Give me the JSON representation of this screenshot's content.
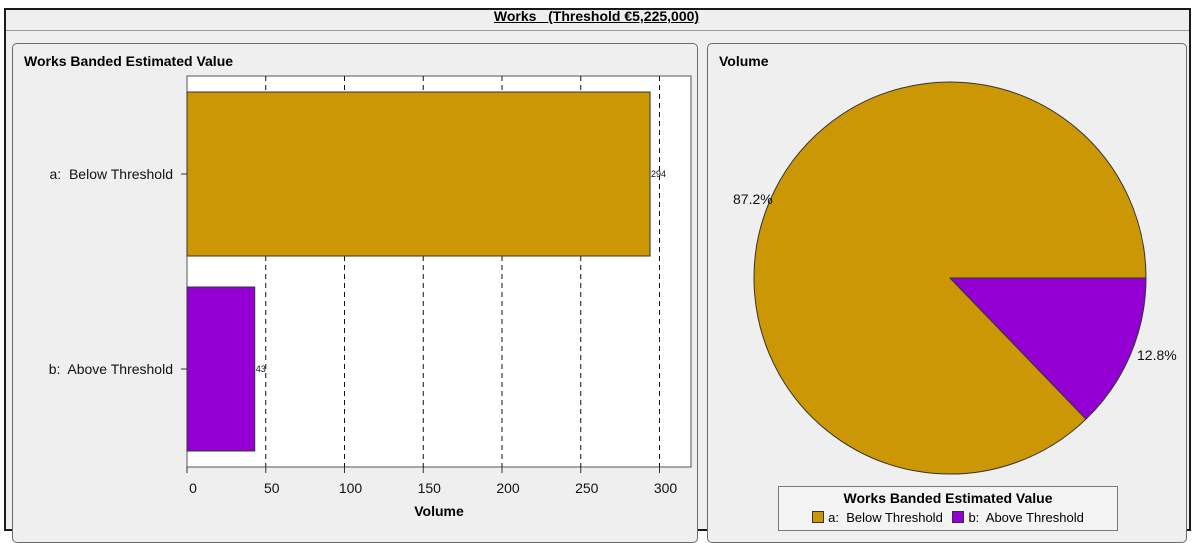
{
  "header": {
    "title": "Works   (Threshold €5,225,000)"
  },
  "colors": {
    "below_threshold": "#cc9705",
    "above_threshold": "#9400d3"
  },
  "chart_data": [
    {
      "type": "bar",
      "orientation": "horizontal",
      "title": "Works Banded Estimated Value",
      "categories": [
        "a:  Below Threshold",
        "b:  Above Threshold"
      ],
      "values": [
        294,
        43
      ],
      "value_labels": [
        "294",
        "43"
      ],
      "xlabel": "Volume",
      "ylabel": "",
      "xlim": [
        0,
        320
      ],
      "xticks": [
        0,
        50,
        100,
        150,
        200,
        250,
        300
      ],
      "grid": "vertical-dashed",
      "colors": [
        "#cc9705",
        "#9400d3"
      ]
    },
    {
      "type": "pie",
      "title": "Volume",
      "labels": [
        "a:  Below Threshold",
        "b:  Above Threshold"
      ],
      "values": [
        87.2,
        12.8
      ],
      "value_labels": [
        "87.2%",
        "12.8%"
      ],
      "colors": [
        "#cc9705",
        "#9400d3"
      ],
      "legend": {
        "title": "Works Banded Estimated Value",
        "items": [
          "a:  Below Threshold",
          "b:  Above Threshold"
        ],
        "placement": "bottom"
      }
    }
  ]
}
